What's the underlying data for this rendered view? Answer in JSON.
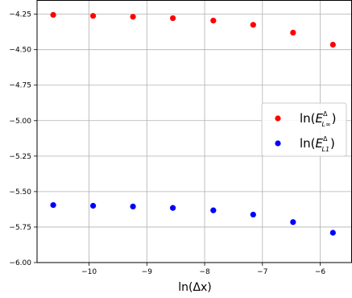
{
  "chart_data": {
    "type": "scatter",
    "title": "",
    "xlabel": "ln(Δx)",
    "ylabel": "",
    "xlim": [
      -10.9,
      -5.45
    ],
    "ylim": [
      -6.0,
      -4.15
    ],
    "x_ticks": [
      -10,
      -9,
      -8,
      -7,
      -6
    ],
    "x_tick_labels": [
      "−10",
      "−9",
      "−8",
      "−7",
      "−6"
    ],
    "y_ticks": [
      -6.0,
      -5.75,
      -5.5,
      -5.25,
      -5.0,
      -4.75,
      -4.5,
      -4.25
    ],
    "y_tick_labels": [
      "−6.00",
      "−5.75",
      "−5.50",
      "−5.25",
      "−5.00",
      "−4.75",
      "−4.50",
      "−4.25"
    ],
    "grid": true,
    "legend_position": "center-right",
    "x": [
      -10.62,
      -9.93,
      -9.24,
      -8.55,
      -7.85,
      -7.16,
      -6.47,
      -5.78
    ],
    "series": [
      {
        "name": "ln(E_{L^∞}^Δ)",
        "legend": {
          "main": "ln(",
          "sym": "E",
          "sup": "Δ",
          "sub": "L∞",
          "close": ")"
        },
        "color": "#ff0000",
        "values": [
          -4.255,
          -4.262,
          -4.268,
          -4.278,
          -4.295,
          -4.325,
          -4.38,
          -4.465
        ]
      },
      {
        "name": "ln(E_{L^1}^Δ)",
        "legend": {
          "main": "ln(",
          "sym": "E",
          "sup": "Δ",
          "sub": "L1",
          "close": ")"
        },
        "color": "#0000ff",
        "values": [
          -5.595,
          -5.6,
          -5.605,
          -5.615,
          -5.632,
          -5.662,
          -5.715,
          -5.79
        ]
      }
    ]
  }
}
